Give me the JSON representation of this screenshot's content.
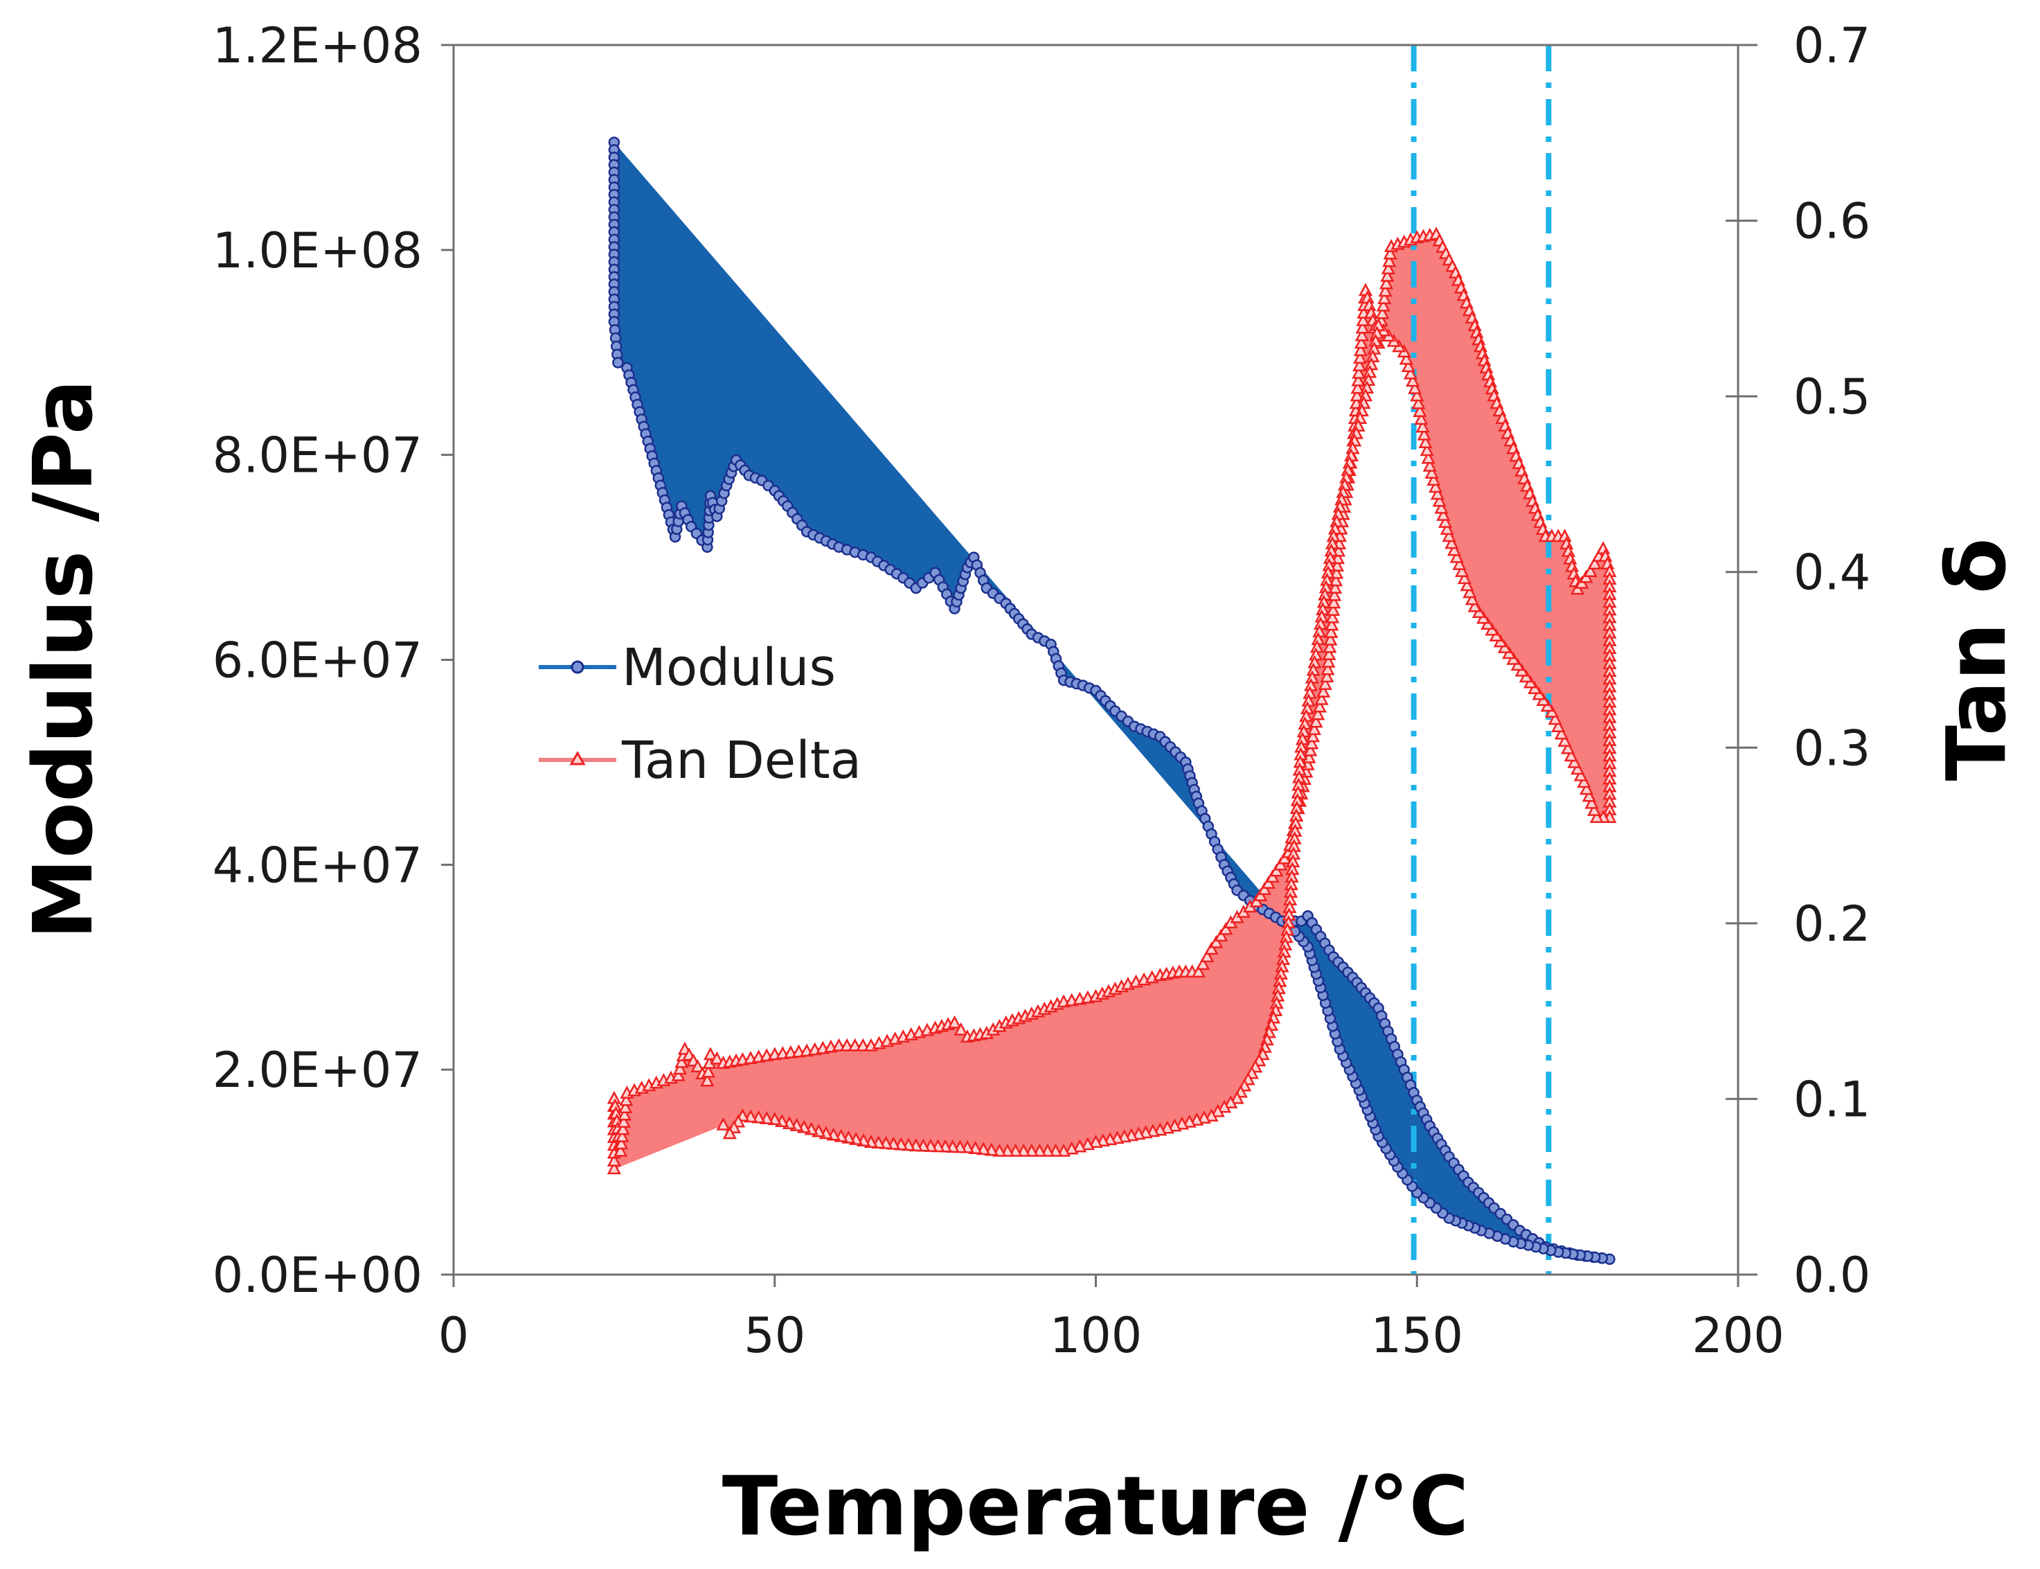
{
  "chart_data": {
    "type": "line",
    "title": "",
    "xlabel": "Temperature /°C",
    "ylabel_left": "Modulus /Pa",
    "ylabel_right": "Tan δ",
    "xlim": [
      0,
      200
    ],
    "ylim_left": [
      0,
      120000000
    ],
    "ylim_right": [
      0,
      0.7
    ],
    "x_ticks": [
      0,
      50,
      100,
      150,
      200
    ],
    "x_tick_labels": [
      "0",
      "50",
      "100",
      "150",
      "200"
    ],
    "y_left_ticks": [
      0,
      20000000,
      40000000,
      60000000,
      80000000,
      100000000,
      120000000
    ],
    "y_left_tick_labels": [
      "0.0E+00",
      "2.0E+07",
      "4.0E+07",
      "6.0E+07",
      "8.0E+07",
      "1.0E+08",
      "1.2E+08"
    ],
    "y_right_ticks": [
      0,
      0.1,
      0.2,
      0.3,
      0.4,
      0.5,
      0.6,
      0.7
    ],
    "y_right_tick_labels": [
      "0.0",
      "0.1",
      "0.2",
      "0.3",
      "0.4",
      "0.5",
      "0.6",
      "0.7"
    ],
    "legend": {
      "placement": "center-left",
      "entries": [
        "Modulus",
        "Tan Delta"
      ]
    },
    "vertical_reference_lines_x": [
      149.5,
      170.5
    ],
    "colors": {
      "modulus_line": "#1f6fc0",
      "modulus_marker": "#1a2e8c",
      "modulus_fill": "#0b5aa8",
      "tan_line": "#f08080",
      "tan_marker": "#ee2222",
      "tan_fill": "#f87a7a",
      "ref_line": "#1eb4ea"
    },
    "series": [
      {
        "name": "Modulus",
        "axis": "left",
        "marker": "circle",
        "points": [
          [
            25,
            110500000
          ],
          [
            25,
            93000000
          ],
          [
            25.6,
            89000000
          ],
          [
            27,
            88500000
          ],
          [
            34.5,
            72000000
          ],
          [
            35.5,
            75000000
          ],
          [
            37,
            73000000
          ],
          [
            39.5,
            71000000
          ],
          [
            40,
            76000000
          ],
          [
            41,
            74000000
          ],
          [
            42.5,
            77000000
          ],
          [
            44,
            79500000
          ],
          [
            46,
            78000000
          ],
          [
            48,
            77500000
          ],
          [
            50,
            76500000
          ],
          [
            52,
            75000000
          ],
          [
            55,
            72500000
          ],
          [
            60,
            71000000
          ],
          [
            65,
            70000000
          ],
          [
            70,
            68000000
          ],
          [
            72,
            67000000
          ],
          [
            75,
            68500000
          ],
          [
            78,
            65000000
          ],
          [
            80,
            69000000
          ],
          [
            81,
            70000000
          ],
          [
            83,
            67000000
          ],
          [
            86,
            65500000
          ],
          [
            88,
            64000000
          ],
          [
            90,
            62500000
          ],
          [
            93,
            61500000
          ],
          [
            95,
            58000000
          ],
          [
            98,
            57500000
          ],
          [
            100,
            57000000
          ],
          [
            103,
            55000000
          ],
          [
            106,
            53500000
          ],
          [
            110,
            52500000
          ],
          [
            114,
            50000000
          ],
          [
            116,
            46000000
          ],
          [
            118,
            43000000
          ],
          [
            120,
            40000000
          ],
          [
            122,
            37500000
          ],
          [
            125,
            36000000
          ],
          [
            129,
            34500000
          ],
          [
            132,
            34500000
          ],
          [
            133,
            35000000
          ],
          [
            135,
            33000000
          ],
          [
            137,
            31000000
          ],
          [
            140,
            29000000
          ],
          [
            142,
            27500000
          ],
          [
            144,
            26000000
          ],
          [
            146,
            23000000
          ],
          [
            148,
            20000000
          ],
          [
            150,
            17000000
          ],
          [
            152,
            14500000
          ],
          [
            155,
            11500000
          ],
          [
            158,
            9000000
          ],
          [
            162,
            6500000
          ],
          [
            166,
            4300000
          ],
          [
            170,
            2700000
          ],
          [
            175,
            1900000
          ],
          [
            180,
            1500000
          ],
          [
            172,
            2200000
          ],
          [
            165,
            3200000
          ],
          [
            160,
            4300000
          ],
          [
            155,
            5500000
          ],
          [
            150,
            8000000
          ],
          [
            147,
            10500000
          ],
          [
            144,
            13500000
          ],
          [
            141,
            18000000
          ],
          [
            138,
            22000000
          ],
          [
            135,
            28000000
          ],
          [
            133,
            32000000
          ],
          [
            131,
            33500000
          ]
        ]
      },
      {
        "name": "Tan Delta",
        "axis": "right",
        "marker": "triangle",
        "points": [
          [
            25,
            0.06
          ],
          [
            25,
            0.1
          ],
          [
            26,
            0.07
          ],
          [
            27,
            0.103
          ],
          [
            35,
            0.113
          ],
          [
            36,
            0.128
          ],
          [
            38,
            0.118
          ],
          [
            39.5,
            0.11
          ],
          [
            40,
            0.125
          ],
          [
            42,
            0.12
          ],
          [
            45,
            0.122
          ],
          [
            50,
            0.125
          ],
          [
            55,
            0.127
          ],
          [
            60,
            0.13
          ],
          [
            65,
            0.13
          ],
          [
            70,
            0.135
          ],
          [
            75,
            0.14
          ],
          [
            78,
            0.143
          ],
          [
            80,
            0.135
          ],
          [
            83,
            0.137
          ],
          [
            86,
            0.143
          ],
          [
            90,
            0.148
          ],
          [
            95,
            0.155
          ],
          [
            100,
            0.158
          ],
          [
            105,
            0.165
          ],
          [
            110,
            0.17
          ],
          [
            113,
            0.172
          ],
          [
            116,
            0.172
          ],
          [
            118,
            0.185
          ],
          [
            121,
            0.2
          ],
          [
            125,
            0.212
          ],
          [
            130,
            0.24
          ],
          [
            133,
            0.29
          ],
          [
            134,
            0.31
          ],
          [
            136,
            0.34
          ],
          [
            138,
            0.42
          ],
          [
            140,
            0.47
          ],
          [
            142,
            0.56
          ],
          [
            144,
            0.53
          ],
          [
            146,
            0.585
          ],
          [
            150,
            0.59
          ],
          [
            153,
            0.592
          ],
          [
            156,
            0.57
          ],
          [
            159,
            0.54
          ],
          [
            162,
            0.5
          ],
          [
            165,
            0.47
          ],
          [
            168,
            0.44
          ],
          [
            170,
            0.42
          ],
          [
            173,
            0.42
          ],
          [
            175,
            0.39
          ],
          [
            177,
            0.4
          ],
          [
            179,
            0.413
          ],
          [
            180,
            0.4
          ],
          [
            180,
            0.26
          ],
          [
            178,
            0.26
          ],
          [
            176,
            0.28
          ],
          [
            174,
            0.295
          ],
          [
            171,
            0.32
          ],
          [
            167,
            0.34
          ],
          [
            163,
            0.36
          ],
          [
            159,
            0.38
          ],
          [
            155,
            0.42
          ],
          [
            152,
            0.46
          ],
          [
            150,
            0.5
          ],
          [
            148,
            0.525
          ],
          [
            144,
            0.54
          ],
          [
            142,
            0.5
          ],
          [
            140,
            0.47
          ],
          [
            137,
            0.42
          ],
          [
            135,
            0.37
          ],
          [
            132,
            0.3
          ],
          [
            130,
            0.2
          ],
          [
            128,
            0.15
          ],
          [
            126,
            0.125
          ],
          [
            122,
            0.1
          ],
          [
            118,
            0.09
          ],
          [
            110,
            0.082
          ],
          [
            100,
            0.075
          ],
          [
            95,
            0.07
          ],
          [
            90,
            0.07
          ],
          [
            85,
            0.07
          ],
          [
            80,
            0.072
          ],
          [
            72,
            0.073
          ],
          [
            65,
            0.075
          ],
          [
            58,
            0.08
          ],
          [
            50,
            0.088
          ],
          [
            45,
            0.09
          ],
          [
            43,
            0.08
          ],
          [
            42,
            0.085
          ]
        ]
      }
    ]
  }
}
